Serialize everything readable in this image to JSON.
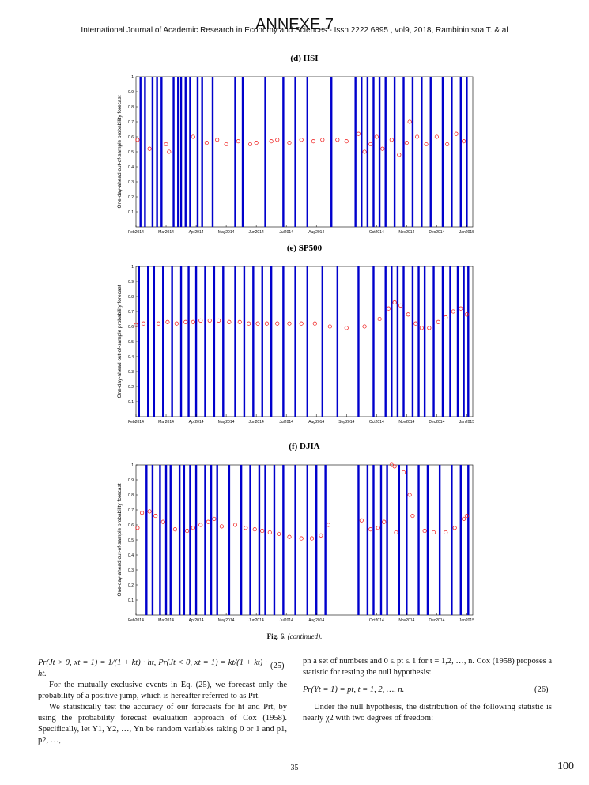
{
  "header": {
    "journal": "International Journal of Academic Research in Economy and Sciences - Issn 2222 6895 , vol9, 2018, Rambinintsoa T. & al",
    "annex": "ANNEXE 7"
  },
  "y_axis_label": "One-day-ahead out-of-sample probability forecast",
  "chart_data": [
    {
      "type": "scatter",
      "title": "(d) HSI",
      "xlim": [
        0,
        11.2
      ],
      "ylim": [
        0,
        1
      ],
      "yticks": [
        0.1,
        0.2,
        0.3,
        0.4,
        0.5,
        0.6,
        0.7,
        0.8,
        0.9,
        1
      ],
      "xticks": [
        {
          "value": 0,
          "label": "Feb2014"
        },
        {
          "value": 1,
          "label": "Mar2014"
        },
        {
          "value": 2,
          "label": "Apr2014"
        },
        {
          "value": 3,
          "label": "May2014"
        },
        {
          "value": 4,
          "label": "Jun2014"
        },
        {
          "value": 5,
          "label": "Jul2014"
        },
        {
          "value": 6,
          "label": "Aug2014"
        },
        {
          "value": 8,
          "label": "Oct2014"
        },
        {
          "value": 9,
          "label": "Nov2014"
        },
        {
          "value": 10,
          "label": "Dec2014"
        },
        {
          "value": 11,
          "label": "Jan2015"
        }
      ],
      "jumps": {
        "color": "#0000cc",
        "x": [
          0.15,
          0.3,
          0.55,
          0.7,
          0.85,
          1.25,
          1.4,
          1.5,
          1.65,
          1.8,
          2.05,
          2.2,
          2.55,
          3.3,
          3.55,
          4.3,
          4.9,
          5.3,
          5.7,
          6.5,
          7.3,
          7.5,
          7.7,
          7.9,
          8.1,
          8.3,
          8.6,
          8.9,
          9.2,
          9.5,
          9.8,
          10.2,
          10.5,
          10.8,
          11.0
        ],
        "values": [
          1,
          1,
          1,
          1,
          1,
          1,
          1,
          1,
          1,
          1,
          1,
          1,
          1,
          1,
          1,
          1,
          1,
          1,
          1,
          1,
          1,
          1,
          1,
          1,
          1,
          1,
          1,
          1,
          1,
          1,
          1,
          1,
          1,
          1,
          1
        ]
      },
      "forecast": {
        "color": "#ee1111",
        "x": [
          0.05,
          0.45,
          1.0,
          1.1,
          1.9,
          2.35,
          2.7,
          3.0,
          3.4,
          3.8,
          4.0,
          4.5,
          4.7,
          5.1,
          5.5,
          5.9,
          6.2,
          6.7,
          7.0,
          7.4,
          7.6,
          7.8,
          8.0,
          8.2,
          8.5,
          8.75,
          9.0,
          9.1,
          9.35,
          9.65,
          10.0,
          10.35,
          10.65,
          10.9
        ],
        "values": [
          0.58,
          0.52,
          0.55,
          0.5,
          0.6,
          0.56,
          0.58,
          0.55,
          0.57,
          0.55,
          0.56,
          0.57,
          0.58,
          0.56,
          0.58,
          0.57,
          0.58,
          0.58,
          0.57,
          0.62,
          0.5,
          0.55,
          0.6,
          0.52,
          0.58,
          0.48,
          0.56,
          0.7,
          0.6,
          0.55,
          0.6,
          0.55,
          0.62,
          0.57
        ]
      }
    },
    {
      "type": "scatter",
      "title": "(e) SP500",
      "xlim": [
        0,
        11.2
      ],
      "ylim": [
        0,
        1
      ],
      "yticks": [
        0.1,
        0.2,
        0.3,
        0.4,
        0.5,
        0.6,
        0.7,
        0.8,
        0.9,
        1
      ],
      "xticks": [
        {
          "value": 0,
          "label": "Feb2014"
        },
        {
          "value": 1,
          "label": "Mar2014"
        },
        {
          "value": 2,
          "label": "Apr2014"
        },
        {
          "value": 3,
          "label": "May2014"
        },
        {
          "value": 4,
          "label": "Jun2014"
        },
        {
          "value": 5,
          "label": "Jul2014"
        },
        {
          "value": 6,
          "label": "Aug2014"
        },
        {
          "value": 7,
          "label": "Sep2014"
        },
        {
          "value": 8,
          "label": "Oct2014"
        },
        {
          "value": 9,
          "label": "Nov2014"
        },
        {
          "value": 10,
          "label": "Dec2014"
        },
        {
          "value": 11,
          "label": "Jan2015"
        }
      ],
      "jumps": {
        "color": "#0000cc",
        "x": [
          0.1,
          0.4,
          0.6,
          0.9,
          1.2,
          1.5,
          1.75,
          2.0,
          2.3,
          2.6,
          2.9,
          3.3,
          3.6,
          3.9,
          4.2,
          4.5,
          4.9,
          5.3,
          5.7,
          6.2,
          6.7,
          7.4,
          7.9,
          8.3,
          8.5,
          8.7,
          8.9,
          9.2,
          9.4,
          9.6,
          9.9,
          10.2,
          10.45,
          10.7,
          10.9,
          11.05
        ],
        "values": [
          1,
          1,
          1,
          1,
          1,
          1,
          1,
          1,
          1,
          1,
          1,
          1,
          1,
          1,
          1,
          1,
          1,
          1,
          1,
          1,
          1,
          1,
          1,
          1,
          1,
          1,
          1,
          1,
          1,
          1,
          1,
          1,
          1,
          1,
          1,
          1
        ]
      },
      "forecast": {
        "color": "#ee1111",
        "x": [
          0.0,
          0.25,
          0.75,
          1.05,
          1.35,
          1.65,
          1.9,
          2.15,
          2.45,
          2.75,
          3.1,
          3.45,
          3.75,
          4.05,
          4.35,
          4.7,
          5.1,
          5.5,
          5.95,
          6.45,
          7.0,
          7.6,
          8.1,
          8.4,
          8.6,
          8.8,
          9.05,
          9.3,
          9.5,
          9.75,
          10.05,
          10.3,
          10.55,
          10.8,
          11.0
        ],
        "values": [
          0.61,
          0.62,
          0.62,
          0.63,
          0.62,
          0.63,
          0.63,
          0.64,
          0.64,
          0.64,
          0.63,
          0.63,
          0.62,
          0.62,
          0.62,
          0.62,
          0.62,
          0.62,
          0.62,
          0.6,
          0.59,
          0.6,
          0.65,
          0.72,
          0.76,
          0.74,
          0.68,
          0.62,
          0.59,
          0.59,
          0.63,
          0.66,
          0.7,
          0.72,
          0.68
        ]
      }
    },
    {
      "type": "scatter",
      "title": "(f) DJIA",
      "xlim": [
        0,
        11.2
      ],
      "ylim": [
        0,
        1
      ],
      "yticks": [
        0.1,
        0.2,
        0.3,
        0.4,
        0.5,
        0.6,
        0.7,
        0.8,
        0.9,
        1
      ],
      "xticks": [
        {
          "value": 0,
          "label": "Feb2014"
        },
        {
          "value": 1,
          "label": "Mar2014"
        },
        {
          "value": 2,
          "label": "Apr2014"
        },
        {
          "value": 3,
          "label": "May2014"
        },
        {
          "value": 4,
          "label": "Jun2014"
        },
        {
          "value": 5,
          "label": "Jul2014"
        },
        {
          "value": 6,
          "label": "Aug2014"
        },
        {
          "value": 8,
          "label": "Oct2014"
        },
        {
          "value": 9,
          "label": "Nov2014"
        },
        {
          "value": 10,
          "label": "Dec2014"
        },
        {
          "value": 11,
          "label": "Jan2015"
        }
      ],
      "jumps": {
        "color": "#0000cc",
        "x": [
          0.35,
          0.55,
          0.8,
          1.0,
          1.15,
          1.45,
          1.6,
          1.8,
          2.0,
          2.3,
          2.5,
          2.7,
          3.1,
          3.5,
          3.8,
          4.1,
          4.3,
          4.6,
          4.9,
          5.3,
          5.7,
          6.0,
          6.3,
          7.4,
          7.7,
          7.9,
          8.15,
          8.35,
          8.75,
          9.0,
          9.4,
          9.7,
          10.1,
          10.5,
          10.8,
          11.05
        ],
        "values": [
          1,
          1,
          1,
          1,
          1,
          1,
          1,
          1,
          1,
          1,
          1,
          1,
          1,
          1,
          1,
          1,
          1,
          1,
          1,
          1,
          1,
          1,
          1,
          1,
          1,
          1,
          1,
          1,
          1,
          1,
          1,
          1,
          1,
          1,
          1,
          1
        ]
      },
      "forecast": {
        "color": "#ee1111",
        "x": [
          0.05,
          0.2,
          0.45,
          0.65,
          0.9,
          1.3,
          1.7,
          1.9,
          2.15,
          2.4,
          2.6,
          2.85,
          3.3,
          3.65,
          3.95,
          4.2,
          4.45,
          4.75,
          5.1,
          5.5,
          5.85,
          6.15,
          6.4,
          7.5,
          7.8,
          8.05,
          8.25,
          8.5,
          8.6,
          8.65,
          8.9,
          9.1,
          9.2,
          9.6,
          9.9,
          10.3,
          10.6,
          10.9,
          11.0
        ],
        "values": [
          0.58,
          0.68,
          0.69,
          0.66,
          0.62,
          0.57,
          0.56,
          0.58,
          0.6,
          0.62,
          0.64,
          0.59,
          0.6,
          0.58,
          0.57,
          0.56,
          0.55,
          0.54,
          0.52,
          0.51,
          0.51,
          0.53,
          0.6,
          0.63,
          0.57,
          0.58,
          0.62,
          1.0,
          0.99,
          0.55,
          0.95,
          0.8,
          0.66,
          0.56,
          0.55,
          0.55,
          0.58,
          0.64,
          0.66
        ]
      }
    }
  ],
  "caption": {
    "label": "Fig. 6.",
    "text": "(continued)."
  },
  "body": {
    "eq25": {
      "text": "Pr(Jt > 0, xt = 1) = 1/(1 + kt) · ht,   Pr(Jt < 0, xt = 1) = kt/(1 + kt) · ht.",
      "number": "(25)"
    },
    "left": [
      "For the mutually exclusive events in Eq. (25), we forecast only the probability of a positive jump, which is hereafter referred to as Prt.",
      "We statistically test the accuracy of our forecasts for ht and Prt, by using the probability forecast evaluation approach of Cox (1958). Specifically, let Y1, Y2, …, Yn be random variables taking 0 or 1 and p1, p2, …,"
    ],
    "right_top": "pn a set of numbers and 0 ≤ pt ≤ 1 for t = 1,2, …, n. Cox (1958) proposes a statistic for testing the null hypothesis:",
    "eq26": {
      "text": "Pr(Yt = 1) = pt,   t = 1, 2, …, n.",
      "number": "(26)"
    },
    "right_bottom": "Under the null hypothesis, the distribution of the following statistic is nearly χ2 with two degrees of freedom:"
  },
  "footer": {
    "page": "35",
    "annex_page": "100"
  }
}
